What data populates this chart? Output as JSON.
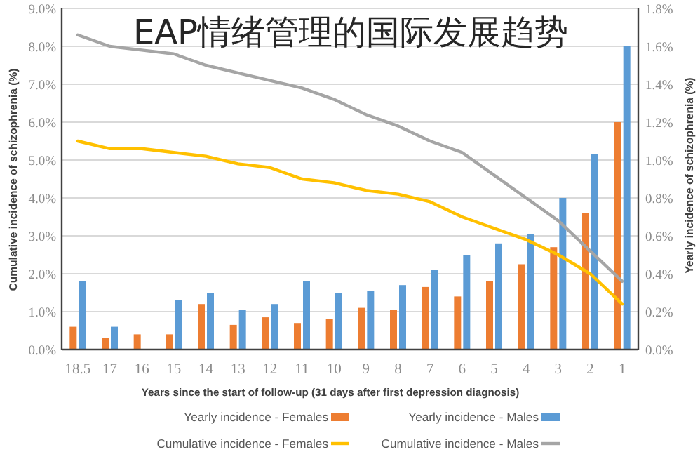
{
  "chart_data": {
    "type": "bar",
    "title": "EAP情绪管理的国际发展趋势",
    "xlabel": "Years since the start of follow-up (31 days after first depression diagnosis)",
    "ylabel": "Cumulative incidence of schizophrenia (%)",
    "y2label": "Yearly incidence of schizophrenia (%)",
    "categories": [
      "18.5",
      "17",
      "16",
      "15",
      "14",
      "13",
      "12",
      "11",
      "10",
      "9",
      "8",
      "7",
      "6",
      "5",
      "4",
      "3",
      "2",
      "1"
    ],
    "series": [
      {
        "name": "Yearly incidence - Females",
        "axis": "y2",
        "color": "#ED7D31",
        "values": [
          0.12,
          0.06,
          0.08,
          0.08,
          0.24,
          0.13,
          0.17,
          0.14,
          0.16,
          0.22,
          0.21,
          0.33,
          0.28,
          0.36,
          0.45,
          0.54,
          0.72,
          1.2
        ]
      },
      {
        "name": "Yearly incidence - Males",
        "axis": "y2",
        "color": "#5B9BD5",
        "values": [
          0.36,
          0.12,
          null,
          0.26,
          0.3,
          0.21,
          0.24,
          0.36,
          0.3,
          0.31,
          0.34,
          0.42,
          0.5,
          0.56,
          0.61,
          0.8,
          1.03,
          1.6
        ]
      },
      {
        "name": "Cumulative incidence - Females",
        "type": "line",
        "color": "#FFC000",
        "values": [
          5.5,
          5.3,
          5.3,
          5.2,
          5.1,
          4.9,
          4.8,
          4.5,
          4.4,
          4.2,
          4.1,
          3.9,
          3.5,
          3.2,
          2.9,
          2.5,
          2.0,
          1.2
        ]
      },
      {
        "name": "Cumulative incidence - Males",
        "type": "line",
        "color": "#A5A5A5",
        "values": [
          8.3,
          8.0,
          7.9,
          7.8,
          7.5,
          7.3,
          7.1,
          6.9,
          6.6,
          6.2,
          5.9,
          5.5,
          5.2,
          4.6,
          4.0,
          3.4,
          2.6,
          1.8
        ]
      }
    ],
    "ylim": [
      0,
      9
    ],
    "yticks": [
      {
        "value": 0,
        "label": "0.0%"
      },
      {
        "value": 1,
        "label": "1.0%"
      },
      {
        "value": 2,
        "label": "2.0%"
      },
      {
        "value": 3,
        "label": "3.0%"
      },
      {
        "value": 4,
        "label": "4.0%"
      },
      {
        "value": 5,
        "label": "5.0%"
      },
      {
        "value": 6,
        "label": "6.0%"
      },
      {
        "value": 7,
        "label": "7.0%"
      },
      {
        "value": 8,
        "label": "8.0%"
      },
      {
        "value": 9,
        "label": "9.0%"
      }
    ],
    "y2lim": [
      0,
      1.8
    ],
    "y2ticks": [
      {
        "value": 0,
        "label": "0.0%"
      },
      {
        "value": 0.2,
        "label": "0.2%"
      },
      {
        "value": 0.4,
        "label": "0.4%"
      },
      {
        "value": 0.6,
        "label": "0.6%"
      },
      {
        "value": 0.8,
        "label": "0.8%"
      },
      {
        "value": 1.0,
        "label": "1.0%"
      },
      {
        "value": 1.2,
        "label": "1.2%"
      },
      {
        "value": 1.4,
        "label": "1.4%"
      },
      {
        "value": 1.6,
        "label": "1.6%"
      },
      {
        "value": 1.8,
        "label": "1.8%"
      }
    ],
    "grid": "y",
    "legend": "bottom"
  }
}
